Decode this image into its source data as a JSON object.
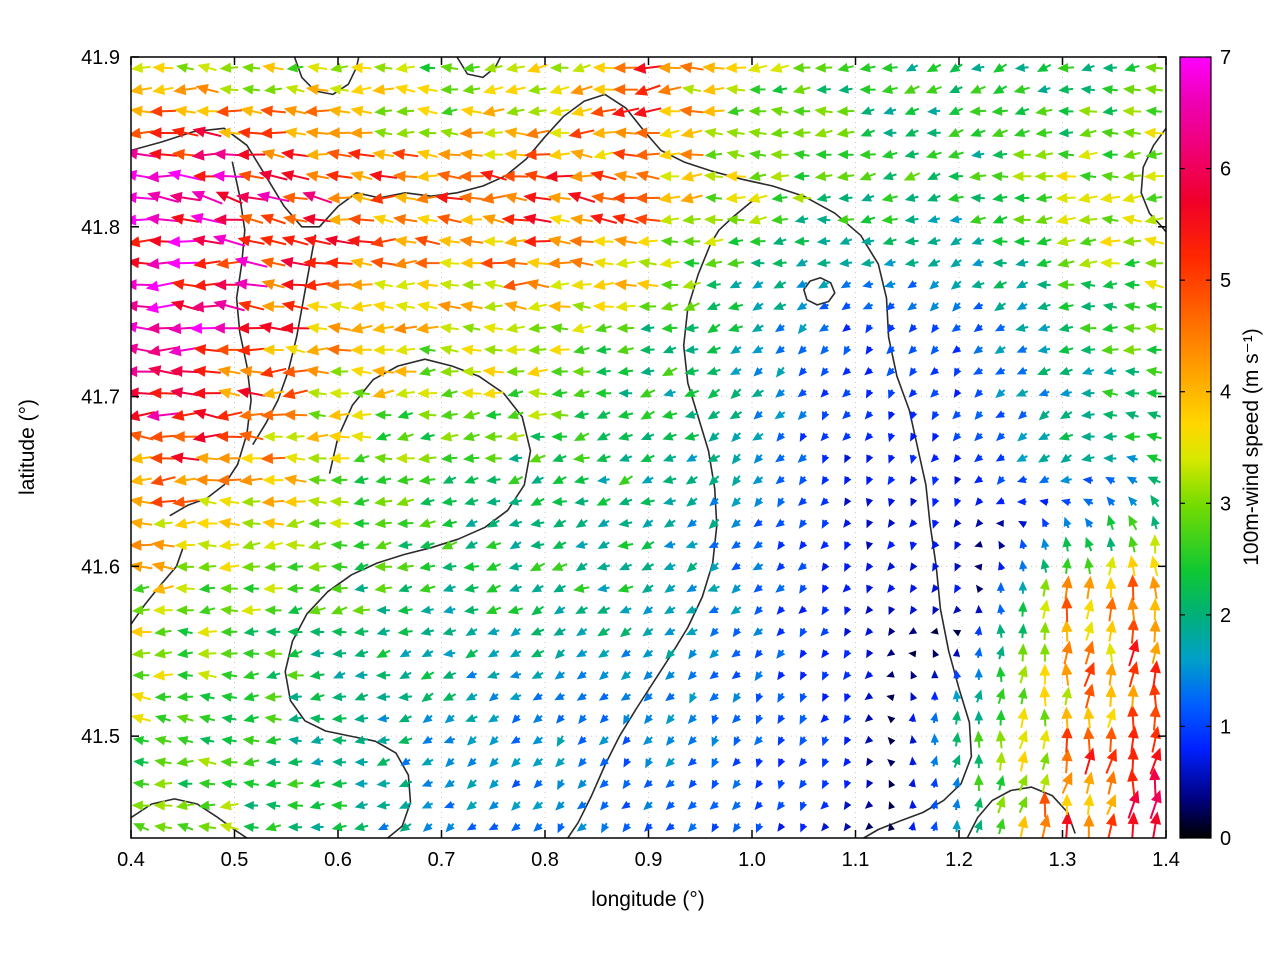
{
  "chart_data": {
    "type": "quiver",
    "title": "",
    "xlabel": "longitude (°)",
    "ylabel": "latitude (°)",
    "xlim": [
      0.4,
      1.4
    ],
    "ylim": [
      41.44,
      41.9
    ],
    "grid": "dotted",
    "xticks": [
      0.4,
      0.5,
      0.6,
      0.7,
      0.8,
      0.9,
      1.0,
      1.1,
      1.2,
      1.3,
      1.4
    ],
    "xtick_labels": [
      "0.4",
      "0.5",
      "0.6",
      "0.7",
      "0.8",
      "0.9",
      "1.0",
      "1.1",
      "1.2",
      "1.3",
      "1.4"
    ],
    "yticks": [
      41.5,
      41.6,
      41.7,
      41.8,
      41.9
    ],
    "ytick_labels": [
      "41.5",
      "41.6",
      "41.7",
      "41.8",
      "41.9"
    ],
    "colorbar": {
      "label": "100m-wind speed (m s⁻¹)",
      "min": 0,
      "max": 7,
      "ticks": [
        0,
        1,
        2,
        3,
        4,
        5,
        6,
        7
      ],
      "tick_labels": [
        "0",
        "1",
        "2",
        "3",
        "4",
        "5",
        "6",
        "7"
      ],
      "position": "right",
      "stops": [
        {
          "v": 0.0,
          "c": "#000000"
        },
        {
          "v": 0.35,
          "c": "#000080"
        },
        {
          "v": 0.8,
          "c": "#0020ff"
        },
        {
          "v": 1.2,
          "c": "#0060ff"
        },
        {
          "v": 1.6,
          "c": "#00a0c8"
        },
        {
          "v": 2.0,
          "c": "#00b078"
        },
        {
          "v": 2.4,
          "c": "#10c832"
        },
        {
          "v": 3.0,
          "c": "#78dc00"
        },
        {
          "v": 3.4,
          "c": "#d8e800"
        },
        {
          "v": 3.7,
          "c": "#ffd800"
        },
        {
          "v": 4.2,
          "c": "#ffa000"
        },
        {
          "v": 4.7,
          "c": "#ff6400"
        },
        {
          "v": 5.2,
          "c": "#ff2800"
        },
        {
          "v": 5.7,
          "c": "#f00028"
        },
        {
          "v": 6.2,
          "c": "#f00078"
        },
        {
          "v": 6.6,
          "c": "#ee00b4"
        },
        {
          "v": 7.0,
          "c": "#ff00ff"
        }
      ]
    },
    "wind_grid": {
      "units": "m/s",
      "lons": [
        0.4,
        0.5,
        0.6,
        0.7,
        0.8,
        0.9,
        1.0,
        1.1,
        1.2,
        1.3,
        1.4
      ],
      "lats": [
        41.44,
        41.51,
        41.58,
        41.66,
        41.74,
        41.82,
        41.9
      ],
      "u": [
        [
          -2.5,
          -2.8,
          -2.0,
          -1.2,
          -0.8,
          -0.8,
          -0.6,
          -0.3,
          0.5,
          1.0,
          0.5
        ],
        [
          -3.0,
          -2.5,
          -2.0,
          -1.5,
          -1.0,
          -0.8,
          -0.6,
          -0.5,
          0.3,
          0.5,
          0.8
        ],
        [
          -3.2,
          -3.0,
          -2.5,
          -2.0,
          -2.0,
          -1.8,
          -1.0,
          -0.3,
          -0.3,
          0.5,
          0.5
        ],
        [
          -5.0,
          -4.2,
          -3.0,
          -2.5,
          -2.2,
          -2.0,
          -1.0,
          -0.3,
          -0.4,
          -1.5,
          -2.0
        ],
        [
          -6.8,
          -5.5,
          -4.0,
          -3.5,
          -3.8,
          -2.5,
          -1.5,
          -0.6,
          -0.8,
          -2.0,
          -3.0
        ],
        [
          -6.5,
          -6.0,
          -5.0,
          -4.5,
          -5.0,
          -4.5,
          -3.0,
          -2.5,
          -2.2,
          -3.2,
          -3.5
        ],
        [
          -3.5,
          -3.0,
          -3.0,
          -2.5,
          -3.5,
          -4.5,
          -3.0,
          -2.2,
          -2.0,
          -2.0,
          -2.5
        ]
      ],
      "v": [
        [
          0.5,
          0.0,
          -0.3,
          -0.8,
          -1.0,
          -0.8,
          -0.8,
          -0.5,
          1.5,
          4.5,
          5.0
        ],
        [
          0.3,
          0.0,
          -0.3,
          -0.8,
          -1.0,
          -1.2,
          -1.0,
          -0.8,
          2.0,
          4.0,
          5.0
        ],
        [
          0.0,
          -0.3,
          -0.5,
          -0.6,
          -0.8,
          -0.8,
          -0.8,
          -0.5,
          -0.6,
          4.0,
          4.5
        ],
        [
          0.0,
          0.0,
          -0.3,
          -0.5,
          -0.6,
          -0.8,
          -1.0,
          -0.6,
          -0.7,
          -1.0,
          1.0
        ],
        [
          0.0,
          0.3,
          0.0,
          0.0,
          0.0,
          -0.5,
          -1.0,
          -0.8,
          -0.8,
          -0.5,
          0.5
        ],
        [
          0.5,
          1.0,
          0.5,
          0.0,
          0.5,
          0.0,
          0.0,
          -0.3,
          -0.5,
          0.0,
          0.0
        ],
        [
          0.0,
          0.3,
          0.0,
          0.0,
          -0.5,
          -0.5,
          0.0,
          -0.5,
          -0.8,
          -0.5,
          0.0
        ]
      ]
    },
    "arrow_density": {
      "nx": 47,
      "ny": 36
    },
    "contours": [
      {
        "points": [
          [
            0.4,
            41.845
          ],
          [
            0.43,
            41.85
          ],
          [
            0.46,
            41.856
          ],
          [
            0.49,
            41.858
          ],
          [
            0.512,
            41.848
          ],
          [
            0.53,
            41.83
          ],
          [
            0.548,
            41.812
          ],
          [
            0.565,
            41.8
          ],
          [
            0.582,
            41.8
          ],
          [
            0.6,
            41.812
          ],
          [
            0.618,
            41.82
          ],
          [
            0.64,
            41.817
          ],
          [
            0.665,
            41.82
          ],
          [
            0.69,
            41.818
          ],
          [
            0.715,
            41.82
          ],
          [
            0.74,
            41.824
          ],
          [
            0.762,
            41.83
          ],
          [
            0.782,
            41.84
          ],
          [
            0.8,
            41.853
          ],
          [
            0.818,
            41.865
          ],
          [
            0.838,
            41.874
          ],
          [
            0.858,
            41.878
          ],
          [
            0.878,
            41.87
          ],
          [
            0.895,
            41.857
          ],
          [
            0.912,
            41.845
          ],
          [
            0.935,
            41.838
          ],
          [
            0.96,
            41.833
          ],
          [
            0.99,
            41.828
          ],
          [
            1.02,
            41.824
          ],
          [
            1.05,
            41.818
          ],
          [
            1.08,
            41.808
          ],
          [
            1.105,
            41.795
          ],
          [
            1.122,
            41.778
          ],
          [
            1.13,
            41.758
          ],
          [
            1.132,
            41.735
          ],
          [
            1.14,
            41.712
          ],
          [
            1.152,
            41.692
          ],
          [
            1.16,
            41.67
          ],
          [
            1.168,
            41.648
          ],
          [
            1.172,
            41.625
          ],
          [
            1.178,
            41.6
          ],
          [
            1.182,
            41.575
          ],
          [
            1.19,
            41.55
          ],
          [
            1.2,
            41.528
          ],
          [
            1.21,
            41.508
          ],
          [
            1.212,
            41.488
          ],
          [
            1.202,
            41.472
          ],
          [
            1.185,
            41.462
          ],
          [
            1.165,
            41.455
          ],
          [
            1.143,
            41.45
          ],
          [
            1.122,
            41.445
          ],
          [
            1.108,
            41.44
          ]
        ]
      },
      {
        "points": [
          [
            0.558,
            41.9
          ],
          [
            0.565,
            41.888
          ],
          [
            0.578,
            41.88
          ],
          [
            0.595,
            41.878
          ],
          [
            0.61,
            41.884
          ],
          [
            0.618,
            41.894
          ],
          [
            0.62,
            41.9
          ]
        ]
      },
      {
        "points": [
          [
            0.715,
            41.9
          ],
          [
            0.725,
            41.89
          ],
          [
            0.74,
            41.888
          ],
          [
            0.752,
            41.894
          ],
          [
            0.757,
            41.9
          ]
        ]
      },
      {
        "points": [
          [
            0.498,
            41.838
          ],
          [
            0.505,
            41.818
          ],
          [
            0.51,
            41.798
          ],
          [
            0.507,
            41.778
          ],
          [
            0.502,
            41.758
          ],
          [
            0.505,
            41.738
          ],
          [
            0.512,
            41.718
          ],
          [
            0.516,
            41.698
          ],
          [
            0.512,
            41.678
          ],
          [
            0.503,
            41.66
          ],
          [
            0.49,
            41.648
          ],
          [
            0.473,
            41.64
          ],
          [
            0.455,
            41.636
          ],
          [
            0.438,
            41.63
          ]
        ]
      },
      {
        "points": [
          [
            0.578,
            41.795
          ],
          [
            0.572,
            41.775
          ],
          [
            0.566,
            41.755
          ],
          [
            0.56,
            41.735
          ],
          [
            0.552,
            41.715
          ],
          [
            0.542,
            41.698
          ],
          [
            0.53,
            41.684
          ],
          [
            0.518,
            41.672
          ]
        ]
      },
      {
        "points": [
          [
            0.592,
            41.655
          ],
          [
            0.6,
            41.676
          ],
          [
            0.614,
            41.695
          ],
          [
            0.634,
            41.71
          ],
          [
            0.658,
            41.718
          ],
          [
            0.684,
            41.722
          ],
          [
            0.71,
            41.718
          ],
          [
            0.736,
            41.712
          ],
          [
            0.76,
            41.702
          ],
          [
            0.778,
            41.688
          ],
          [
            0.786,
            41.668
          ],
          [
            0.78,
            41.648
          ],
          [
            0.764,
            41.633
          ],
          [
            0.742,
            41.623
          ],
          [
            0.716,
            41.616
          ],
          [
            0.69,
            41.611
          ],
          [
            0.664,
            41.607
          ],
          [
            0.638,
            41.602
          ],
          [
            0.613,
            41.595
          ],
          [
            0.59,
            41.585
          ],
          [
            0.57,
            41.572
          ],
          [
            0.556,
            41.556
          ],
          [
            0.549,
            41.538
          ],
          [
            0.554,
            41.521
          ],
          [
            0.568,
            41.509
          ],
          [
            0.588,
            41.503
          ],
          [
            0.612,
            41.5
          ],
          [
            0.636,
            41.497
          ],
          [
            0.656,
            41.49
          ],
          [
            0.668,
            41.477
          ],
          [
            0.67,
            41.461
          ],
          [
            0.662,
            41.447
          ],
          [
            0.648,
            41.44
          ]
        ]
      },
      {
        "points": [
          [
            1.0,
            41.815
          ],
          [
            0.982,
            41.806
          ],
          [
            0.968,
            41.798
          ],
          [
            0.96,
            41.79
          ],
          [
            0.948,
            41.772
          ],
          [
            0.938,
            41.752
          ],
          [
            0.934,
            41.73
          ],
          [
            0.938,
            41.708
          ],
          [
            0.948,
            41.688
          ],
          [
            0.958,
            41.668
          ],
          [
            0.964,
            41.646
          ],
          [
            0.966,
            41.624
          ],
          [
            0.962,
            41.602
          ],
          [
            0.952,
            41.582
          ],
          [
            0.938,
            41.564
          ],
          [
            0.922,
            41.548
          ],
          [
            0.905,
            41.532
          ],
          [
            0.888,
            41.516
          ],
          [
            0.872,
            41.5
          ],
          [
            0.858,
            41.483
          ],
          [
            0.845,
            41.465
          ],
          [
            0.832,
            41.449
          ],
          [
            0.822,
            41.44
          ]
        ]
      },
      {
        "points": [
          [
            1.05,
            41.763
          ],
          [
            1.056,
            41.768
          ],
          [
            1.066,
            41.77
          ],
          [
            1.076,
            41.767
          ],
          [
            1.08,
            41.761
          ],
          [
            1.074,
            41.756
          ],
          [
            1.063,
            41.754
          ],
          [
            1.053,
            41.757
          ],
          [
            1.05,
            41.763
          ]
        ]
      },
      {
        "points": [
          [
            1.208,
            41.44
          ],
          [
            1.218,
            41.452
          ],
          [
            1.232,
            41.462
          ],
          [
            1.25,
            41.468
          ],
          [
            1.27,
            41.47
          ],
          [
            1.29,
            41.465
          ],
          [
            1.305,
            41.455
          ],
          [
            1.312,
            41.443
          ]
        ]
      },
      {
        "points": [
          [
            1.4,
            41.858
          ],
          [
            1.388,
            41.848
          ],
          [
            1.378,
            41.835
          ],
          [
            1.376,
            41.82
          ],
          [
            1.384,
            41.808
          ],
          [
            1.396,
            41.8
          ],
          [
            1.4,
            41.797
          ]
        ]
      },
      {
        "points": [
          [
            0.4,
            41.566
          ],
          [
            0.414,
            41.578
          ],
          [
            0.43,
            41.59
          ],
          [
            0.444,
            41.6
          ],
          [
            0.452,
            41.614
          ]
        ]
      },
      {
        "points": [
          [
            0.4,
            41.452
          ],
          [
            0.42,
            41.46
          ],
          [
            0.442,
            41.463
          ],
          [
            0.464,
            41.46
          ],
          [
            0.484,
            41.452
          ],
          [
            0.502,
            41.444
          ],
          [
            0.512,
            41.44
          ]
        ]
      }
    ]
  }
}
